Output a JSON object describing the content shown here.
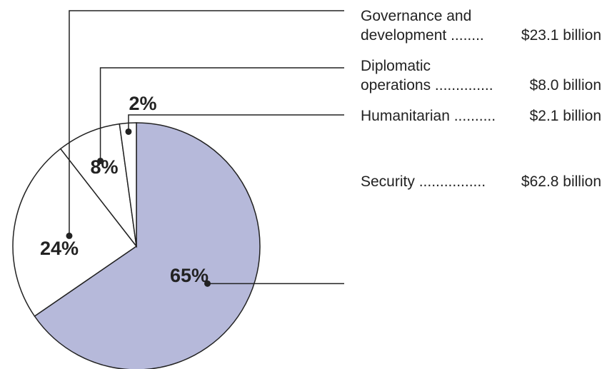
{
  "chart_data": {
    "type": "pie",
    "title": "",
    "slices": [
      {
        "label_lines": [
          "Security"
        ],
        "dots": "................",
        "value_text": "$62.8 billion",
        "value": 62.8,
        "percent_label": "65%",
        "color": "#b6b9da"
      },
      {
        "label_lines": [
          "Governance and",
          "development"
        ],
        "dots": "........",
        "value_text": "$23.1 billion",
        "value": 23.1,
        "percent_label": "24%",
        "color": "#ffffff"
      },
      {
        "label_lines": [
          "Diplomatic",
          "operations"
        ],
        "dots": "..............",
        "value_text": "$8.0 billion",
        "value": 8.0,
        "percent_label": "8%",
        "color": "#ffffff"
      },
      {
        "label_lines": [
          "Humanitarian"
        ],
        "dots": "..........",
        "value_text": "$2.1 billion",
        "value": 2.1,
        "percent_label": "2%",
        "color": "#ffffff"
      }
    ],
    "value_unit": "billion dollars",
    "legend_position": "right"
  },
  "colors": {
    "outline": "#222222",
    "text": "#222222",
    "security_fill": "#b6b9da",
    "other_fill": "#ffffff"
  }
}
